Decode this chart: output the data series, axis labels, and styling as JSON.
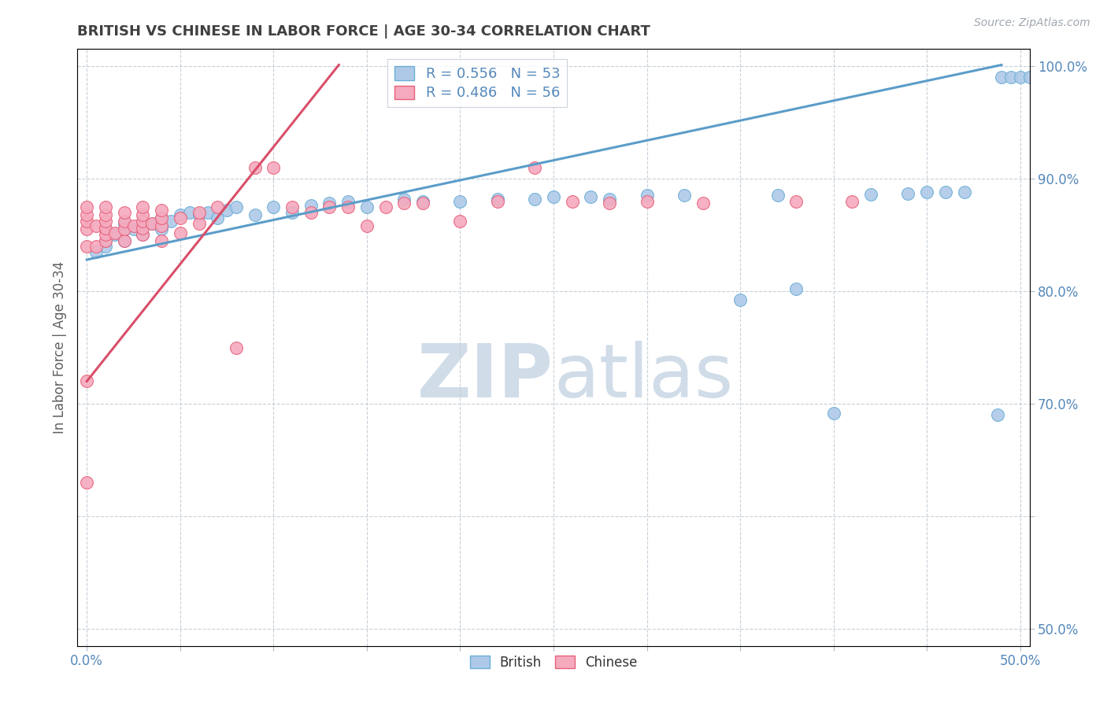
{
  "title": "BRITISH VS CHINESE IN LABOR FORCE | AGE 30-34 CORRELATION CHART",
  "source_text": "Source: ZipAtlas.com",
  "ylabel": "In Labor Force | Age 30-34",
  "xlim": [
    -0.005,
    0.505
  ],
  "ylim": [
    0.485,
    1.015
  ],
  "british_R": 0.556,
  "british_N": 53,
  "chinese_R": 0.486,
  "chinese_N": 56,
  "british_color": "#aec9e8",
  "chinese_color": "#f5aabe",
  "british_edge_color": "#6aaed6",
  "chinese_edge_color": "#e8607a",
  "british_line_color": "#5b9dc9",
  "chinese_line_color": "#d94f6a",
  "watermark_color": "#d0dce8",
  "title_color": "#404040",
  "tick_color": "#5588bb",
  "grid_color": "#c8d0d8",
  "brit_x": [
    0.005,
    0.01,
    0.01,
    0.01,
    0.015,
    0.02,
    0.02,
    0.02,
    0.025,
    0.03,
    0.03,
    0.035,
    0.04,
    0.04,
    0.045,
    0.05,
    0.055,
    0.06,
    0.065,
    0.07,
    0.075,
    0.08,
    0.09,
    0.1,
    0.11,
    0.12,
    0.13,
    0.14,
    0.15,
    0.17,
    0.18,
    0.2,
    0.22,
    0.24,
    0.25,
    0.27,
    0.28,
    0.3,
    0.32,
    0.35,
    0.37,
    0.38,
    0.4,
    0.42,
    0.44,
    0.45,
    0.46,
    0.47,
    0.488,
    0.49,
    0.495,
    0.5,
    0.505
  ],
  "brit_y": [
    0.835,
    0.84,
    0.845,
    0.855,
    0.85,
    0.845,
    0.855,
    0.86,
    0.855,
    0.85,
    0.858,
    0.86,
    0.855,
    0.865,
    0.862,
    0.868,
    0.87,
    0.868,
    0.87,
    0.865,
    0.872,
    0.875,
    0.868,
    0.875,
    0.87,
    0.876,
    0.878,
    0.88,
    0.875,
    0.882,
    0.88,
    0.88,
    0.882,
    0.882,
    0.884,
    0.884,
    0.882,
    0.885,
    0.885,
    0.792,
    0.885,
    0.802,
    0.692,
    0.886,
    0.887,
    0.888,
    0.888,
    0.888,
    0.69,
    0.99,
    0.99,
    0.99,
    0.99
  ],
  "chin_x": [
    0.0,
    0.0,
    0.0,
    0.0,
    0.0,
    0.0,
    0.0,
    0.005,
    0.005,
    0.01,
    0.01,
    0.01,
    0.01,
    0.01,
    0.01,
    0.015,
    0.02,
    0.02,
    0.02,
    0.02,
    0.025,
    0.03,
    0.03,
    0.03,
    0.03,
    0.03,
    0.035,
    0.04,
    0.04,
    0.04,
    0.04,
    0.05,
    0.05,
    0.06,
    0.06,
    0.07,
    0.08,
    0.09,
    0.1,
    0.11,
    0.12,
    0.13,
    0.14,
    0.15,
    0.16,
    0.17,
    0.18,
    0.2,
    0.22,
    0.24,
    0.26,
    0.28,
    0.3,
    0.33,
    0.38,
    0.41
  ],
  "chin_y": [
    0.63,
    0.72,
    0.84,
    0.855,
    0.862,
    0.868,
    0.875,
    0.84,
    0.858,
    0.845,
    0.85,
    0.856,
    0.862,
    0.868,
    0.875,
    0.852,
    0.845,
    0.855,
    0.862,
    0.87,
    0.858,
    0.85,
    0.856,
    0.862,
    0.868,
    0.875,
    0.86,
    0.845,
    0.858,
    0.865,
    0.872,
    0.852,
    0.865,
    0.86,
    0.87,
    0.875,
    0.75,
    0.91,
    0.91,
    0.875,
    0.87,
    0.875,
    0.875,
    0.858,
    0.875,
    0.878,
    0.878,
    0.862,
    0.88,
    0.91,
    0.88,
    0.878,
    0.88,
    0.878,
    0.88,
    0.88
  ],
  "brit_line_x0": 0.0,
  "brit_line_y0": 0.828,
  "brit_line_x1": 0.49,
  "brit_line_y1": 1.001,
  "chin_line_x0": 0.0,
  "chin_line_y0": 0.72,
  "chin_line_x1": 0.135,
  "chin_line_y1": 1.001
}
